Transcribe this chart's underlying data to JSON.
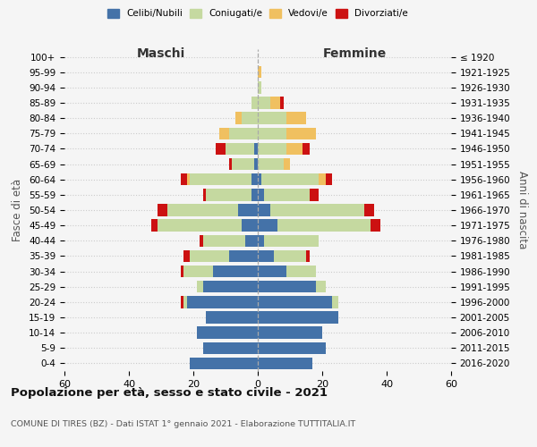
{
  "age_groups": [
    "0-4",
    "5-9",
    "10-14",
    "15-19",
    "20-24",
    "25-29",
    "30-34",
    "35-39",
    "40-44",
    "45-49",
    "50-54",
    "55-59",
    "60-64",
    "65-69",
    "70-74",
    "75-79",
    "80-84",
    "85-89",
    "90-94",
    "95-99",
    "100+"
  ],
  "birth_years": [
    "2016-2020",
    "2011-2015",
    "2006-2010",
    "2001-2005",
    "1996-2000",
    "1991-1995",
    "1986-1990",
    "1981-1985",
    "1976-1980",
    "1971-1975",
    "1966-1970",
    "1961-1965",
    "1956-1960",
    "1951-1955",
    "1946-1950",
    "1941-1945",
    "1936-1940",
    "1931-1935",
    "1926-1930",
    "1921-1925",
    "≤ 1920"
  ],
  "colors": {
    "celibi": "#4472a8",
    "coniugati": "#c5d9a0",
    "vedovi": "#f0c060",
    "divorziati": "#cc1111"
  },
  "maschi": {
    "celibi": [
      21,
      17,
      19,
      16,
      22,
      17,
      14,
      9,
      4,
      5,
      6,
      2,
      2,
      1,
      1,
      0,
      0,
      0,
      0,
      0,
      0
    ],
    "coniugati": [
      0,
      0,
      0,
      0,
      1,
      2,
      9,
      12,
      13,
      26,
      22,
      14,
      19,
      7,
      9,
      9,
      5,
      2,
      0,
      0,
      0
    ],
    "vedovi": [
      0,
      0,
      0,
      0,
      0,
      0,
      0,
      0,
      0,
      0,
      0,
      0,
      1,
      0,
      0,
      3,
      2,
      0,
      0,
      0,
      0
    ],
    "divorziati": [
      0,
      0,
      0,
      0,
      1,
      0,
      1,
      2,
      1,
      2,
      3,
      1,
      2,
      1,
      3,
      0,
      0,
      0,
      0,
      0,
      0
    ]
  },
  "femmine": {
    "nubili": [
      17,
      21,
      20,
      25,
      23,
      18,
      9,
      5,
      2,
      6,
      4,
      2,
      1,
      0,
      0,
      0,
      0,
      0,
      0,
      0,
      0
    ],
    "coniugate": [
      0,
      0,
      0,
      0,
      2,
      3,
      9,
      10,
      17,
      29,
      29,
      14,
      18,
      8,
      9,
      9,
      9,
      4,
      1,
      0,
      0
    ],
    "vedove": [
      0,
      0,
      0,
      0,
      0,
      0,
      0,
      0,
      0,
      0,
      0,
      0,
      2,
      2,
      5,
      9,
      6,
      3,
      0,
      1,
      0
    ],
    "divorziate": [
      0,
      0,
      0,
      0,
      0,
      0,
      0,
      1,
      0,
      3,
      3,
      3,
      2,
      0,
      2,
      0,
      0,
      1,
      0,
      0,
      0
    ]
  },
  "xlim": 60,
  "title": "Popolazione per età, sesso e stato civile - 2021",
  "subtitle": "COMUNE DI TIRES (BZ) - Dati ISTAT 1° gennaio 2021 - Elaborazione TUTTITALIA.IT",
  "xlabel_left": "Maschi",
  "xlabel_right": "Femmine",
  "ylabel_left": "Fasce di età",
  "ylabel_right": "Anni di nascita",
  "bg_color": "#f5f5f5",
  "grid_color": "#cccccc"
}
